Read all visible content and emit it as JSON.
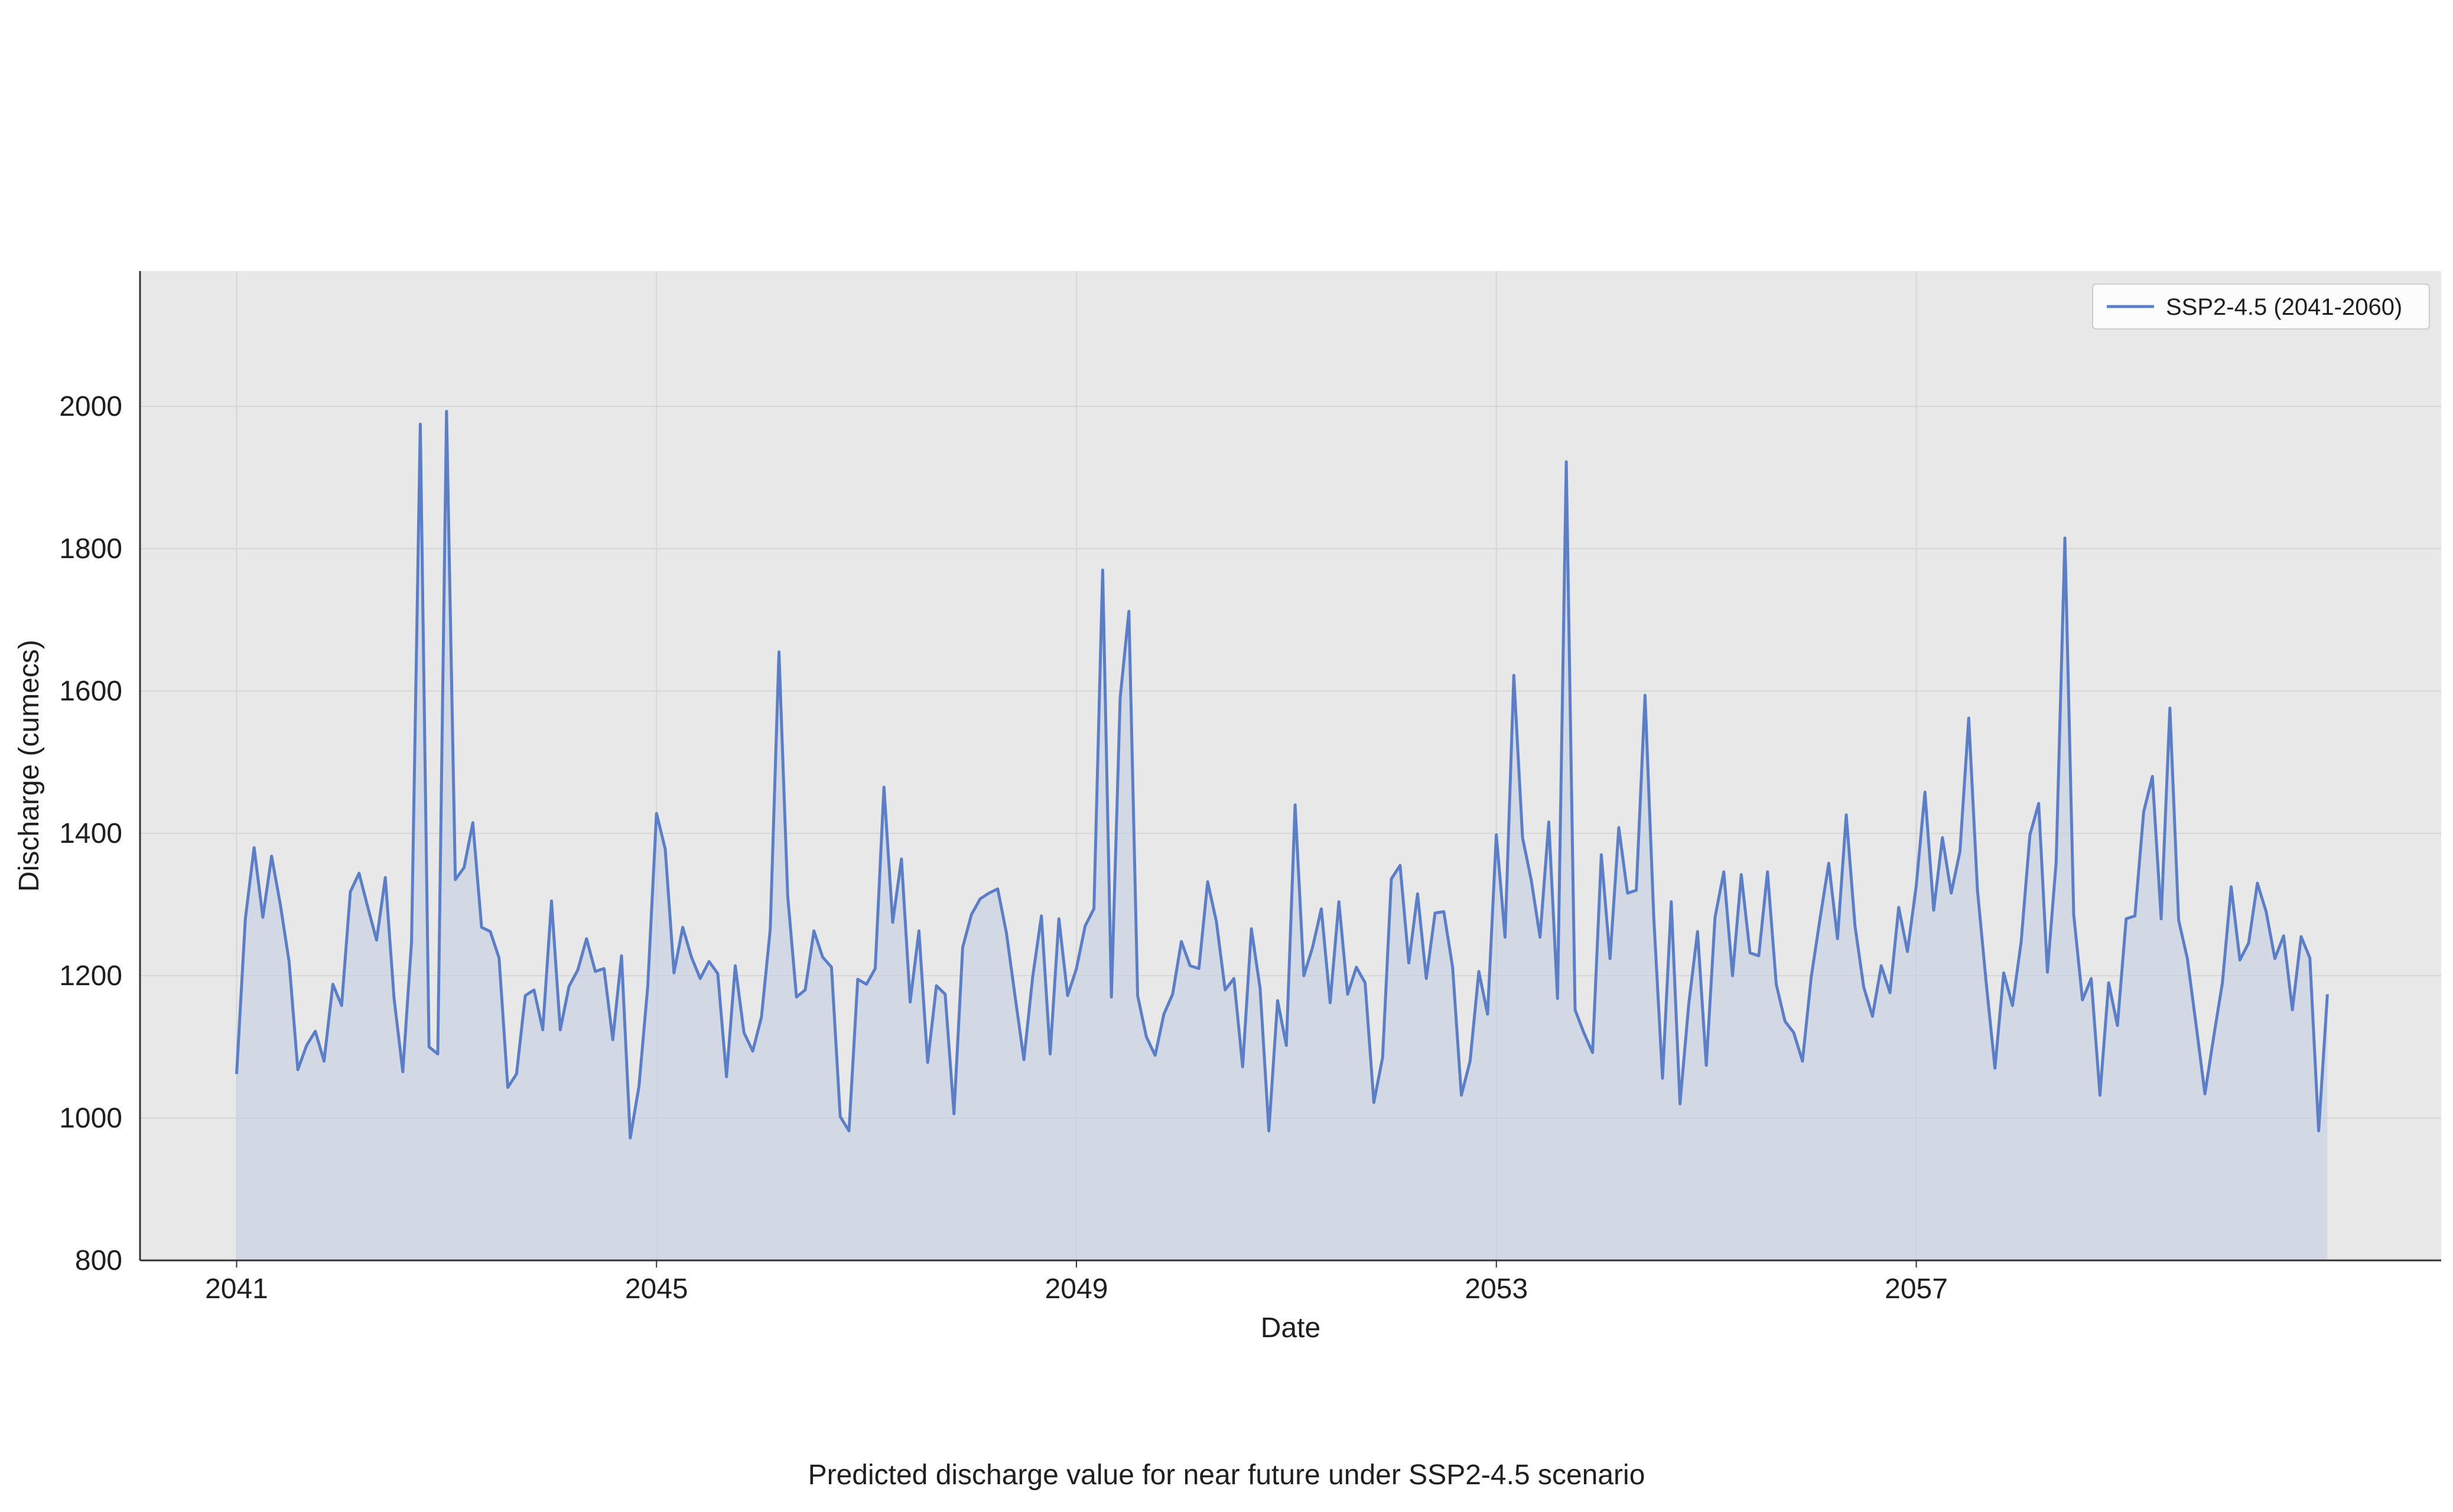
{
  "caption": "Predicted discharge value for near future under SSP2-4.5 scenario",
  "colors": {
    "line": "#5a7ec8",
    "fill": "#c4cde3",
    "plot_bg": "#e8e8e8",
    "grid": "#d6d6d6"
  },
  "chart_data": {
    "type": "area",
    "title": "",
    "xlabel": "Date",
    "ylabel": "Discharge (cumecs)",
    "ylim": [
      800,
      2190
    ],
    "y_ticks": [
      800,
      1000,
      1200,
      1400,
      1600,
      1800,
      2000
    ],
    "x_ticks": [
      "2041",
      "2045",
      "2049",
      "2053",
      "2057"
    ],
    "xlim_years": [
      2040.08,
      2062.0
    ],
    "grid": true,
    "legend": {
      "placement": "top-right"
    },
    "series": [
      {
        "name": "SSP2-4.5 (2041-2060)",
        "start_year": 2041.0,
        "step_years": 0.08333,
        "values": [
          1062,
          1280,
          1380,
          1282,
          1368,
          1300,
          1220,
          1068,
          1102,
          1122,
          1080,
          1188,
          1158,
          1318,
          1344,
          1296,
          1250,
          1338,
          1168,
          1065,
          1248,
          1975,
          1100,
          1090,
          1993,
          1335,
          1352,
          1415,
          1268,
          1262,
          1225,
          1043,
          1062,
          1172,
          1180,
          1124,
          1305,
          1124,
          1185,
          1208,
          1252,
          1206,
          1210,
          1110,
          1228,
          972,
          1045,
          1185,
          1428,
          1378,
          1204,
          1268,
          1226,
          1196,
          1220,
          1203,
          1058,
          1214,
          1120,
          1094,
          1142,
          1265,
          1655,
          1312,
          1170,
          1180,
          1263,
          1226,
          1212,
          1002,
          982,
          1195,
          1188,
          1210,
          1465,
          1275,
          1364,
          1163,
          1263,
          1078,
          1186,
          1174,
          1006,
          1240,
          1286,
          1308,
          1316,
          1322,
          1260,
          1170,
          1082,
          1198,
          1284,
          1090,
          1280,
          1172,
          1210,
          1270,
          1294,
          1770,
          1170,
          1590,
          1712,
          1172,
          1114,
          1088,
          1146,
          1174,
          1248,
          1214,
          1210,
          1332,
          1276,
          1180,
          1196,
          1072,
          1266,
          1182,
          982,
          1165,
          1102,
          1440,
          1200,
          1240,
          1294,
          1162,
          1304,
          1174,
          1212,
          1190,
          1022,
          1085,
          1336,
          1355,
          1218,
          1315,
          1196,
          1288,
          1290,
          1212,
          1032,
          1080,
          1206,
          1146,
          1398,
          1254,
          1622,
          1394,
          1334,
          1254,
          1416,
          1168,
          1922,
          1152,
          1120,
          1092,
          1370,
          1224,
          1408,
          1316,
          1320,
          1594,
          1282,
          1056,
          1304,
          1020,
          1160,
          1262,
          1074,
          1282,
          1346,
          1200,
          1342,
          1232,
          1228,
          1346,
          1188,
          1136,
          1120,
          1080,
          1198,
          1280,
          1358,
          1252,
          1426,
          1270,
          1184,
          1143,
          1214,
          1176,
          1296,
          1234,
          1326,
          1458,
          1292,
          1394,
          1316,
          1375,
          1562,
          1320,
          1190,
          1070,
          1204,
          1158,
          1248,
          1398,
          1442,
          1205,
          1360,
          1815,
          1286,
          1166,
          1196,
          1032,
          1190,
          1130,
          1280,
          1284,
          1430,
          1480,
          1280,
          1576,
          1278,
          1224,
          1130,
          1034,
          1114,
          1190,
          1325,
          1222,
          1246,
          1330,
          1290,
          1224,
          1256,
          1152,
          1255,
          1225,
          982,
          1174
        ]
      }
    ]
  }
}
